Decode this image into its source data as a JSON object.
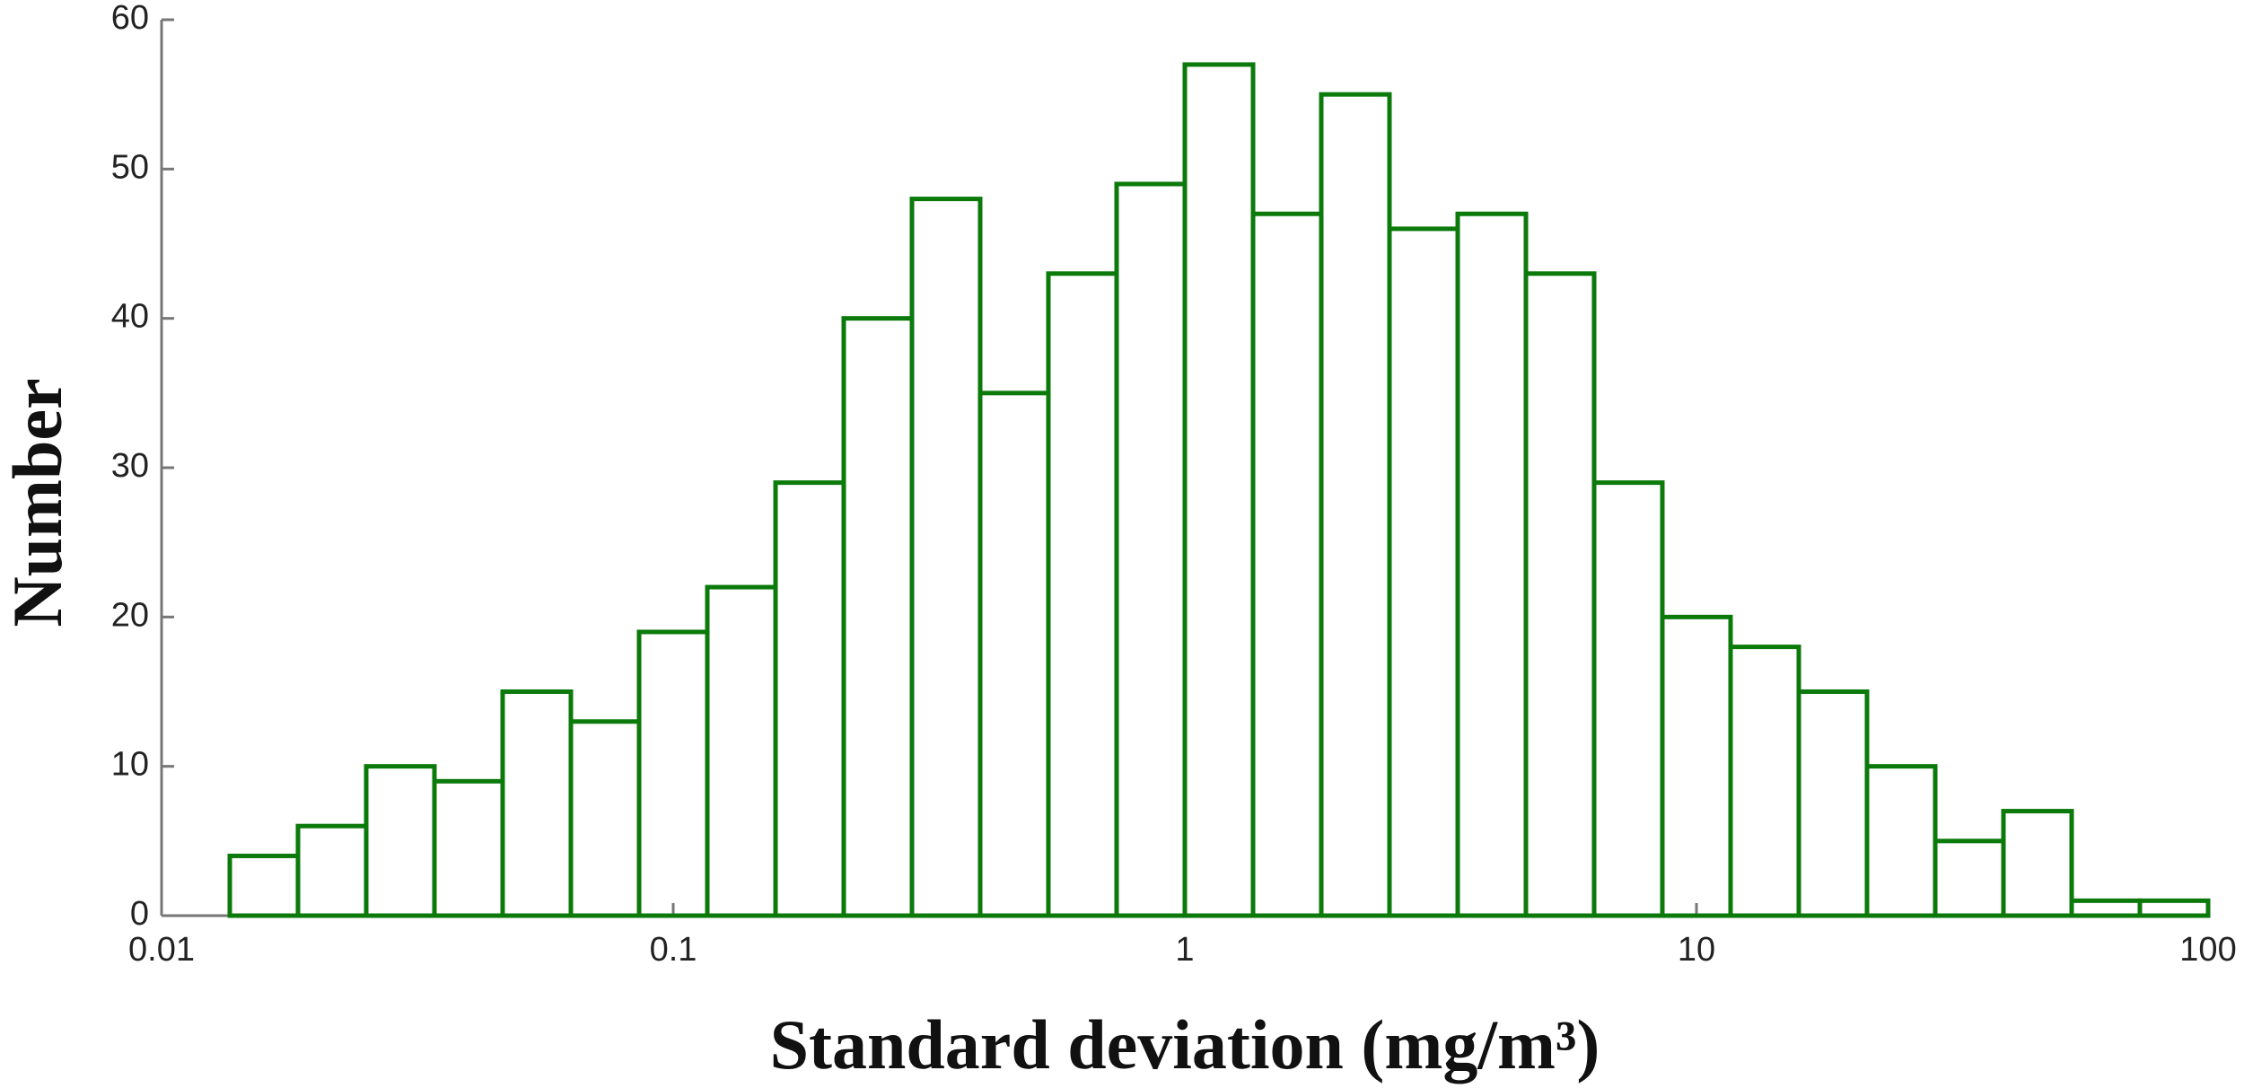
{
  "chart_data": {
    "type": "histogram",
    "xlabel": "Standard deviation (mg/m³)",
    "ylabel": "Number",
    "xscale": "log",
    "color": "#0b7a0b",
    "bins": [
      0.01,
      0.013594,
      0.018478,
      0.025119,
      0.034146,
      0.046416,
      0.063096,
      0.08577,
      0.11659,
      0.15849,
      0.21544,
      0.29286,
      0.39811,
      0.54117,
      0.73564,
      1,
      1.3594,
      1.8478,
      2.5119,
      3.4146,
      4.6416,
      6.3096,
      8.577,
      11.659,
      15.849,
      21.544,
      29.286,
      39.811,
      54.117,
      73.564,
      100
    ],
    "counts": [
      0,
      4,
      6,
      10,
      9,
      15,
      13,
      19,
      22,
      29,
      40,
      48,
      35,
      43,
      49,
      57,
      47,
      55,
      46,
      47,
      43,
      29,
      20,
      18,
      15,
      10,
      5,
      7,
      1,
      1
    ],
    "xlim": [
      0.01,
      100
    ],
    "xticks": [
      0.01,
      0.1,
      1,
      10,
      100
    ],
    "ylim": [
      0,
      60
    ],
    "yticks": [
      0,
      10,
      20,
      30,
      40,
      50,
      60
    ]
  }
}
